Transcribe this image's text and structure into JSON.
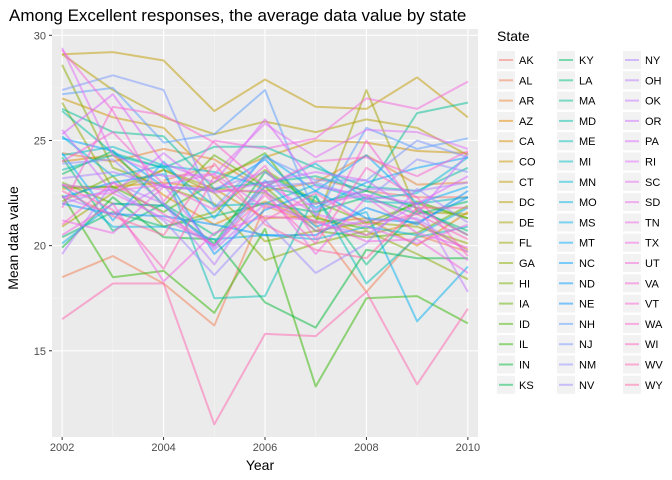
{
  "chart_data": {
    "type": "line",
    "title": "Among Excellent responses, the average data value by state",
    "xlabel": "Year",
    "ylabel": "Mean data value",
    "xlim": [
      2001.8,
      2010.2
    ],
    "ylim": [
      10.9,
      30.3
    ],
    "x_ticks": [
      2002,
      2004,
      2006,
      2008,
      2010
    ],
    "y_ticks": [
      15,
      20,
      25,
      30
    ],
    "legend_title": "State",
    "legend_placement": "right",
    "grid": true,
    "x": [
      2002,
      2003,
      2004,
      2005,
      2006,
      2007,
      2008,
      2009,
      2010
    ],
    "series": [
      {
        "name": "AK",
        "color": "#F8766D",
        "values": [
          27.9,
          null,
          23.1,
          23.8,
          null,
          23.2,
          22.6,
          22.3,
          22.3
        ]
      },
      {
        "name": "AL",
        "color": "#F27D52",
        "values": [
          18.5,
          19.5,
          18.2,
          16.2,
          21.9,
          21.0,
          17.8,
          20.5,
          19.7
        ]
      },
      {
        "name": "AR",
        "color": "#EA8331",
        "values": [
          24.4,
          24.0,
          24.6,
          24.1,
          22.6,
          23.0,
          24.3,
          22.9,
          23.0
        ]
      },
      {
        "name": "AZ",
        "color": "#E18A00",
        "values": [
          24.0,
          24.3,
          22.4,
          21.0,
          22.1,
          21.1,
          21.3,
          20.0,
          21.6
        ]
      },
      {
        "name": "CA",
        "color": "#D89000",
        "values": [
          22.7,
          22.8,
          23.0,
          22.7,
          21.3,
          21.4,
          20.5,
          21.1,
          19.8
        ]
      },
      {
        "name": "CO",
        "color": "#CD9600",
        "values": [
          27.0,
          26.1,
          25.6,
          23.2,
          24.2,
          25.0,
          24.9,
          24.5,
          24.4
        ]
      },
      {
        "name": "CT",
        "color": "#C29B00",
        "values": [
          29.1,
          29.2,
          28.8,
          26.4,
          27.9,
          26.6,
          26.5,
          28.0,
          26.1
        ]
      },
      {
        "name": "DC",
        "color": "#B69F00",
        "values": [
          29.1,
          27.4,
          26.1,
          25.3,
          25.9,
          25.4,
          26.0,
          25.6,
          24.3
        ]
      },
      {
        "name": "DE",
        "color": "#A8A400",
        "values": [
          20.9,
          22.5,
          23.6,
          22.7,
          22.5,
          21.1,
          27.4,
          21.6,
          21.5
        ]
      },
      {
        "name": "FL",
        "color": "#9AA800",
        "values": [
          26.8,
          22.7,
          23.6,
          22.5,
          20.2,
          20.7,
          21.1,
          20.9,
          20.1
        ]
      },
      {
        "name": "GA",
        "color": "#8AAB00",
        "values": [
          28.6,
          23.7,
          22.8,
          22.0,
          19.3,
          20.1,
          20.7,
          19.6,
          18.4
        ]
      },
      {
        "name": "HI",
        "color": "#78AF00",
        "values": [
          22.1,
          23.3,
          20.9,
          21.6,
          23.6,
          22.1,
          21.1,
          22.0,
          21.3
        ]
      },
      {
        "name": "IA",
        "color": "#63B200",
        "values": [
          23.0,
          22.0,
          21.9,
          24.3,
          22.8,
          20.7,
          20.4,
          20.6,
          21.9
        ]
      },
      {
        "name": "ID",
        "color": "#49B500",
        "values": [
          22.8,
          22.8,
          21.6,
          23.0,
          24.4,
          21.3,
          20.8,
          22.1,
          21.3
        ]
      },
      {
        "name": "IL",
        "color": "#31B700",
        "values": [
          22.4,
          18.5,
          18.8,
          16.8,
          20.8,
          13.3,
          17.5,
          17.6,
          16.3
        ]
      },
      {
        "name": "IN",
        "color": "#00BA38",
        "values": [
          19.9,
          22.3,
          20.4,
          20.3,
          17.3,
          16.1,
          19.8,
          19.4,
          19.4
        ]
      },
      {
        "name": "KS",
        "color": "#00BC55",
        "values": [
          23.4,
          24.5,
          21.9,
          20.1,
          23.5,
          22.0,
          22.6,
          21.8,
          20.5
        ]
      },
      {
        "name": "KY",
        "color": "#00BE6C",
        "values": [
          20.4,
          21.6,
          20.9,
          21.4,
          22.0,
          21.6,
          22.3,
          21.5,
          22.1
        ]
      },
      {
        "name": "LA",
        "color": "#00BF80",
        "values": [
          24.2,
          20.7,
          22.0,
          20.5,
          22.8,
          22.3,
          19.1,
          21.7,
          20.7
        ]
      },
      {
        "name": "MA",
        "color": "#00C093",
        "values": [
          26.5,
          25.4,
          25.2,
          22.7,
          23.0,
          23.3,
          22.6,
          26.3,
          26.8
        ]
      },
      {
        "name": "MD",
        "color": "#00C0A5",
        "values": [
          26.4,
          24.4,
          23.7,
          24.7,
          24.7,
          23.7,
          22.8,
          22.6,
          23.7
        ]
      },
      {
        "name": "ME",
        "color": "#00BFB6",
        "values": [
          23.6,
          24.3,
          23.7,
          17.5,
          17.6,
          22.4,
          18.2,
          20.4,
          20.9
        ]
      },
      {
        "name": "MI",
        "color": "#00BDC6",
        "values": [
          24.3,
          24.7,
          23.8,
          21.9,
          22.0,
          22.9,
          22.1,
          22.0,
          22.3
        ]
      },
      {
        "name": "MN",
        "color": "#00BAD5",
        "values": [
          25.2,
          23.3,
          23.8,
          23.5,
          22.8,
          23.9,
          22.2,
          22.5,
          24.2
        ]
      },
      {
        "name": "MO",
        "color": "#00B6E3",
        "values": [
          22.9,
          20.9,
          20.9,
          20.3,
          20.5,
          20.3,
          20.9,
          20.5,
          21.8
        ]
      },
      {
        "name": "MS",
        "color": "#00B1F0",
        "values": [
          20.1,
          22.0,
          21.9,
          20.0,
          23.1,
          20.9,
          21.6,
          16.4,
          19.0
        ]
      },
      {
        "name": "MT",
        "color": "#00ABFB",
        "values": [
          24.4,
          21.2,
          24.0,
          21.3,
          24.3,
          22.6,
          24.3,
          22.0,
          22.8
        ]
      },
      {
        "name": "NC",
        "color": "#00A4FF",
        "values": [
          25.1,
          24.5,
          22.8,
          22.6,
          24.1,
          21.8,
          23.0,
          23.7,
          24.2
        ]
      },
      {
        "name": "ND",
        "color": "#009CFF",
        "values": [
          22.3,
          23.0,
          23.4,
          19.6,
          21.7,
          22.6,
          21.3,
          21.1,
          22.3
        ]
      },
      {
        "name": "NE",
        "color": "#0094FF",
        "values": [
          22.0,
          21.5,
          21.4,
          21.0,
          20.5,
          20.5,
          21.8,
          21.0,
          22.6
        ]
      },
      {
        "name": "NH",
        "color": "#5A9DFF",
        "values": [
          27.2,
          27.5,
          24.9,
          25.3,
          27.4,
          21.4,
          25.6,
          24.6,
          25.1
        ]
      },
      {
        "name": "NJ",
        "color": "#7997FF",
        "values": [
          27.4,
          28.1,
          27.4,
          21.8,
          24.2,
          23.1,
          23.1,
          25.0,
          24.2
        ]
      },
      {
        "name": "NM",
        "color": "#8F91FF",
        "values": [
          23.9,
          24.1,
          22.0,
          19.9,
          22.8,
          23.0,
          22.2,
          24.1,
          23.5
        ]
      },
      {
        "name": "NV",
        "color": "#A08AFF",
        "values": [
          22.0,
          22.7,
          21.2,
          18.6,
          21.2,
          18.7,
          20.1,
          22.7,
          21.1
        ]
      },
      {
        "name": "NY",
        "color": "#AF82FF",
        "values": [
          23.2,
          23.5,
          22.8,
          22.7,
          23.5,
          21.7,
          22.7,
          22.6,
          23.0
        ]
      },
      {
        "name": "OH",
        "color": "#BC7AFF",
        "values": [
          19.6,
          23.0,
          22.0,
          19.1,
          22.6,
          20.7,
          21.2,
          21.3,
          19.7
        ]
      },
      {
        "name": "OK",
        "color": "#C873FF",
        "values": [
          22.3,
          21.5,
          22.9,
          19.8,
          22.0,
          21.1,
          20.5,
          22.0,
          17.8
        ]
      },
      {
        "name": "OR",
        "color": "#D26BFF",
        "values": [
          25.5,
          22.5,
          24.4,
          22.5,
          23.0,
          23.5,
          23.1,
          21.5,
          24.4
        ]
      },
      {
        "name": "PA",
        "color": "#DB63FF",
        "values": [
          25.3,
          27.2,
          23.9,
          23.0,
          26.0,
          22.8,
          22.4,
          22.0,
          23.3
        ]
      },
      {
        "name": "RI",
        "color": "#E26EF7",
        "values": [
          29.4,
          24.3,
          23.3,
          23.4,
          25.8,
          24.2,
          25.5,
          25.4,
          24.6
        ]
      },
      {
        "name": "SC",
        "color": "#E76BF3",
        "values": [
          22.3,
          22.5,
          21.3,
          20.0,
          23.0,
          21.5,
          20.9,
          20.1,
          21.0
        ]
      },
      {
        "name": "SD",
        "color": "#EC69EF",
        "values": [
          22.9,
          22.6,
          22.9,
          23.4,
          21.8,
          22.0,
          22.4,
          21.2,
          19.3
        ]
      },
      {
        "name": "TN",
        "color": "#F066EA",
        "values": [
          21.2,
          20.6,
          22.8,
          22.6,
          22.6,
          19.6,
          22.3,
          20.6,
          19.9
        ]
      },
      {
        "name": "TX",
        "color": "#F464E4",
        "values": [
          20.5,
          22.0,
          18.3,
          20.6,
          21.4,
          21.2,
          20.2,
          20.3,
          18.7
        ]
      },
      {
        "name": "UT",
        "color": "#F763DE",
        "values": [
          29.3,
          26.4,
          22.1,
          25.0,
          24.6,
          25.1,
          27.0,
          26.5,
          27.8
        ]
      },
      {
        "name": "VA",
        "color": "#FA62D8",
        "values": [
          24.0,
          25.4,
          22.9,
          21.7,
          23.8,
          20.3,
          25.0,
          21.7,
          20.5
        ]
      },
      {
        "name": "VT",
        "color": "#FC61D1",
        "values": [
          21.8,
          26.6,
          26.2,
          24.9,
          22.8,
          24.0,
          24.2,
          23.3,
          24.5
        ]
      },
      {
        "name": "WA",
        "color": "#FF61C9",
        "values": [
          21.0,
          23.0,
          21.5,
          20.0,
          22.4,
          20.1,
          23.7,
          22.3,
          19.5
        ]
      },
      {
        "name": "WI",
        "color": "#FF62BC",
        "values": [
          22.9,
          21.7,
          18.9,
          23.3,
          21.2,
          22.5,
          21.0,
          21.5,
          20.3
        ]
      },
      {
        "name": "WV",
        "color": "#FF64B0",
        "values": [
          16.5,
          18.2,
          18.2,
          11.5,
          15.8,
          15.7,
          17.8,
          13.4,
          17.0
        ]
      },
      {
        "name": "WY",
        "color": "#FF67A4",
        "values": [
          22.6,
          21.4,
          20.5,
          23.9,
          21.0,
          19.8,
          19.4,
          21.8,
          21.8
        ]
      }
    ]
  }
}
